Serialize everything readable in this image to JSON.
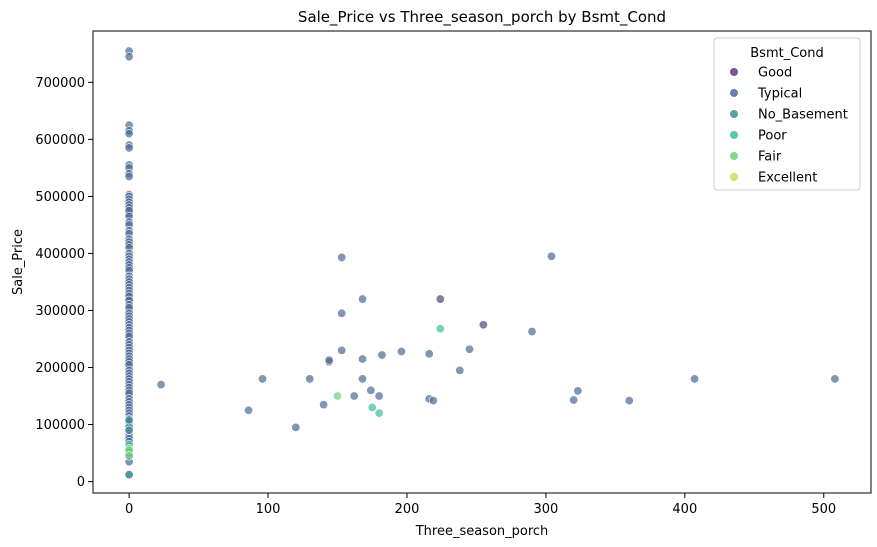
{
  "chart_data": {
    "type": "scatter",
    "title": "Sale_Price vs Three_season_porch by Bsmt_Cond",
    "xlabel": "Three_season_porch",
    "ylabel": "Sale_Price",
    "xlim": [
      -26,
      534
    ],
    "ylim": [
      -20000,
      790000
    ],
    "xticks": [
      0,
      100,
      200,
      300,
      400,
      500
    ],
    "yticks": [
      0,
      100000,
      200000,
      300000,
      400000,
      500000,
      600000,
      700000
    ],
    "grid": false,
    "legend": {
      "title": "Bsmt_Cond",
      "placement": "upper-right"
    },
    "series": [
      {
        "name": "Good",
        "color": "#5a3e7e",
        "points": [
          [
            0,
            470000
          ],
          [
            0,
            320000
          ],
          [
            0,
            300000
          ],
          [
            0,
            250000
          ],
          [
            0,
            200000
          ],
          [
            0,
            150000
          ],
          [
            0,
            100000
          ],
          [
            224,
            320000
          ],
          [
            255,
            275000
          ]
        ]
      },
      {
        "name": "Typical",
        "color": "#4a6a95",
        "points": [
          [
            0,
            755000
          ],
          [
            0,
            745000
          ],
          [
            0,
            625000
          ],
          [
            0,
            615000
          ],
          [
            0,
            610000
          ],
          [
            0,
            590000
          ],
          [
            0,
            585000
          ],
          [
            0,
            555000
          ],
          [
            0,
            550000
          ],
          [
            0,
            540000
          ],
          [
            0,
            535000
          ],
          [
            0,
            503000
          ],
          [
            0,
            500000
          ],
          [
            0,
            495000
          ],
          [
            0,
            490000
          ],
          [
            0,
            485000
          ],
          [
            0,
            480000
          ],
          [
            0,
            475000
          ],
          [
            0,
            465000
          ],
          [
            0,
            455000
          ],
          [
            0,
            450000
          ],
          [
            0,
            440000
          ],
          [
            0,
            435000
          ],
          [
            0,
            425000
          ],
          [
            0,
            420000
          ],
          [
            0,
            415000
          ],
          [
            0,
            410000
          ],
          [
            0,
            400000
          ],
          [
            0,
            395000
          ],
          [
            0,
            390000
          ],
          [
            0,
            385000
          ],
          [
            0,
            380000
          ],
          [
            0,
            375000
          ],
          [
            0,
            370000
          ],
          [
            0,
            360000
          ],
          [
            0,
            355000
          ],
          [
            0,
            350000
          ],
          [
            0,
            345000
          ],
          [
            0,
            340000
          ],
          [
            0,
            335000
          ],
          [
            0,
            330000
          ],
          [
            0,
            325000
          ],
          [
            0,
            318000
          ],
          [
            0,
            310000
          ],
          [
            0,
            305000
          ],
          [
            0,
            295000
          ],
          [
            0,
            290000
          ],
          [
            0,
            285000
          ],
          [
            0,
            280000
          ],
          [
            0,
            275000
          ],
          [
            0,
            270000
          ],
          [
            0,
            265000
          ],
          [
            0,
            260000
          ],
          [
            0,
            255000
          ],
          [
            0,
            245000
          ],
          [
            0,
            240000
          ],
          [
            0,
            235000
          ],
          [
            0,
            230000
          ],
          [
            0,
            225000
          ],
          [
            0,
            220000
          ],
          [
            0,
            215000
          ],
          [
            0,
            210000
          ],
          [
            0,
            205000
          ],
          [
            0,
            195000
          ],
          [
            0,
            190000
          ],
          [
            0,
            185000
          ],
          [
            0,
            180000
          ],
          [
            0,
            175000
          ],
          [
            0,
            170000
          ],
          [
            0,
            165000
          ],
          [
            0,
            160000
          ],
          [
            0,
            155000
          ],
          [
            0,
            145000
          ],
          [
            0,
            140000
          ],
          [
            0,
            135000
          ],
          [
            0,
            130000
          ],
          [
            0,
            125000
          ],
          [
            0,
            120000
          ],
          [
            0,
            115000
          ],
          [
            0,
            110000
          ],
          [
            0,
            105000
          ],
          [
            0,
            95000
          ],
          [
            0,
            90000
          ],
          [
            0,
            85000
          ],
          [
            0,
            80000
          ],
          [
            0,
            75000
          ],
          [
            0,
            70000
          ],
          [
            0,
            62000
          ],
          [
            0,
            55000
          ],
          [
            0,
            45000
          ],
          [
            0,
            35000
          ],
          [
            23,
            170000
          ],
          [
            86,
            125000
          ],
          [
            96,
            180000
          ],
          [
            120,
            95000
          ],
          [
            130,
            180000
          ],
          [
            140,
            135000
          ],
          [
            144,
            210000
          ],
          [
            144,
            213000
          ],
          [
            153,
            393000
          ],
          [
            153,
            295000
          ],
          [
            153,
            230000
          ],
          [
            162,
            150000
          ],
          [
            168,
            320000
          ],
          [
            168,
            215000
          ],
          [
            168,
            180000
          ],
          [
            174,
            160000
          ],
          [
            180,
            150000
          ],
          [
            182,
            222000
          ],
          [
            196,
            228000
          ],
          [
            216,
            224000
          ],
          [
            216,
            145000
          ],
          [
            219,
            142000
          ],
          [
            238,
            195000
          ],
          [
            245,
            232000
          ],
          [
            290,
            263000
          ],
          [
            304,
            395000
          ],
          [
            320,
            143000
          ],
          [
            323,
            159000
          ],
          [
            360,
            142000
          ],
          [
            407,
            180000
          ],
          [
            508,
            180000
          ]
        ]
      },
      {
        "name": "No_Basement",
        "color": "#3f8f9a",
        "points": [
          [
            0,
            90000
          ],
          [
            0,
            50000
          ],
          [
            0,
            13000
          ],
          [
            0,
            12000
          ],
          [
            0,
            108000
          ]
        ]
      },
      {
        "name": "Poor",
        "color": "#3cbfa0",
        "points": [
          [
            0,
            65000
          ],
          [
            175,
            130000
          ],
          [
            180,
            120000
          ],
          [
            224,
            268000
          ]
        ]
      },
      {
        "name": "Fair",
        "color": "#6fd07a",
        "points": [
          [
            0,
            58000
          ],
          [
            0,
            55000
          ],
          [
            0,
            45000
          ],
          [
            150,
            150000
          ]
        ]
      },
      {
        "name": "Excellent",
        "color": "#c8df5a",
        "points": []
      }
    ]
  }
}
